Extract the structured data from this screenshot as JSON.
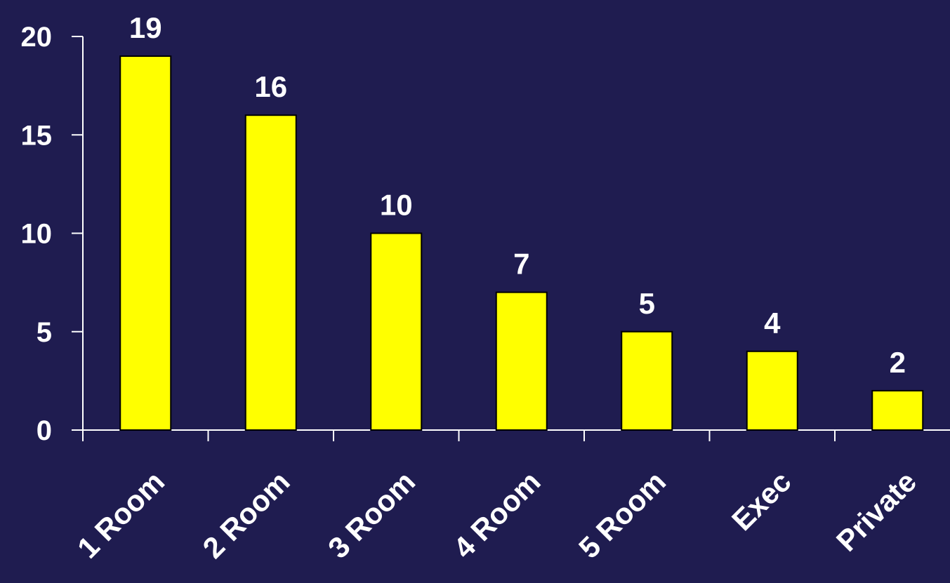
{
  "chart_data": {
    "type": "bar",
    "title": "",
    "xlabel": "",
    "ylabel": "",
    "categories": [
      "1 Room",
      "2 Room",
      "3 Room",
      "4 Room",
      "5 Room",
      "Exec",
      "Private"
    ],
    "values": [
      19,
      16,
      10,
      7,
      5,
      4,
      2
    ],
    "data_labels": [
      "19",
      "16",
      "10",
      "7",
      "5",
      "4",
      "2"
    ],
    "ylim": [
      0,
      20
    ],
    "yticks": [
      0,
      5,
      10,
      15,
      20
    ],
    "ytick_labels": [
      "0",
      "5",
      "10",
      "15",
      "20"
    ],
    "grid": false,
    "legend": "none",
    "colors": {
      "background": "#1f1c50",
      "bar_fill": "#ffff00",
      "bar_stroke": "#000000",
      "axis": "#ffffff",
      "text": "#ffffff"
    }
  }
}
